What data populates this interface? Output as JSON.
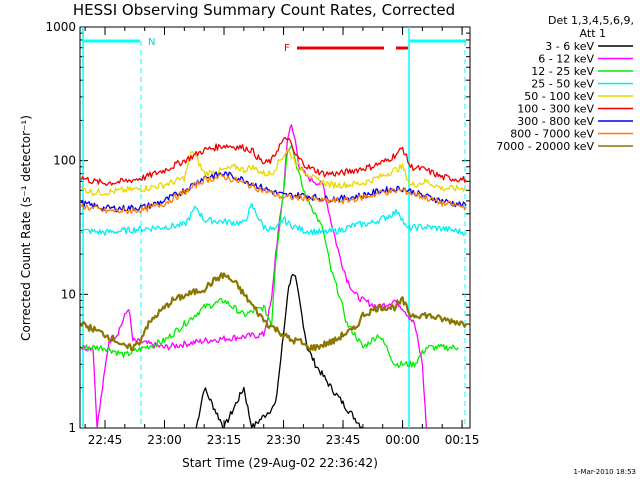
{
  "chart_data": {
    "type": "line",
    "title": "HESSI Observing Summary Count Rates, Corrected",
    "ylabel": "Corrected Count Rate (s⁻¹ detector⁻¹)",
    "xlabel": "Start Time (29-Aug-02 22:36:42)",
    "y_scale": "log",
    "ylim": [
      1,
      1000
    ],
    "xlim_minutes_after_2230": [
      8.7,
      107
    ],
    "y_ticks": [
      {
        "value": 1,
        "label": "1"
      },
      {
        "value": 10,
        "label": "10"
      },
      {
        "value": 100,
        "label": "100"
      },
      {
        "value": 1000,
        "label": "1000"
      }
    ],
    "x_ticks": [
      {
        "minute": 15,
        "label": "22:45"
      },
      {
        "minute": 30,
        "label": "23:00"
      },
      {
        "minute": 45,
        "label": "23:15"
      },
      {
        "minute": 60,
        "label": "23:30"
      },
      {
        "minute": 75,
        "label": "23:45"
      },
      {
        "minute": 90,
        "label": "00:00"
      },
      {
        "minute": 105,
        "label": "00:15"
      }
    ],
    "legend_header": [
      "Det 1,3,4,5,6,9,",
      "Att 1"
    ],
    "legend_placement": "right",
    "series": [
      {
        "name": "3 - 6 keV",
        "color": "#000000",
        "points": [
          [
            38,
            1
          ],
          [
            40,
            2
          ],
          [
            45,
            1
          ],
          [
            50,
            2
          ],
          [
            52,
            1
          ],
          [
            58,
            1.5
          ],
          [
            60,
            5
          ],
          [
            61,
            10
          ],
          [
            62,
            14
          ],
          [
            63,
            13
          ],
          [
            64,
            9
          ],
          [
            65,
            6
          ],
          [
            66,
            4
          ],
          [
            68,
            3
          ],
          [
            72,
            2
          ],
          [
            76,
            1.4
          ],
          [
            80,
            1
          ]
        ]
      },
      {
        "name": "6 - 12 keV",
        "color": "#ff00ff",
        "points": [
          [
            9,
            4
          ],
          [
            12,
            4
          ],
          [
            13,
            1
          ],
          [
            16,
            4.5
          ],
          [
            18,
            5
          ],
          [
            21,
            8
          ],
          [
            22,
            4.5
          ],
          [
            30,
            4
          ],
          [
            40,
            4.5
          ],
          [
            55,
            5
          ],
          [
            57,
            9
          ],
          [
            58,
            20
          ],
          [
            60,
            60
          ],
          [
            61,
            150
          ],
          [
            62,
            180
          ],
          [
            63,
            140
          ],
          [
            64,
            90
          ],
          [
            66,
            75
          ],
          [
            68,
            70
          ],
          [
            70,
            65
          ],
          [
            72,
            35
          ],
          [
            74,
            20
          ],
          [
            76,
            13
          ],
          [
            78,
            10
          ],
          [
            80,
            9
          ],
          [
            84,
            8
          ],
          [
            88,
            9
          ],
          [
            90,
            8
          ],
          [
            93,
            6
          ],
          [
            95,
            3
          ],
          [
            96,
            1
          ]
        ]
      },
      {
        "name": "12 - 25 keV",
        "color": "#00ee00",
        "points": [
          [
            9,
            4
          ],
          [
            15,
            4
          ],
          [
            20,
            3.5
          ],
          [
            25,
            4
          ],
          [
            30,
            4.5
          ],
          [
            35,
            6
          ],
          [
            40,
            8
          ],
          [
            45,
            9
          ],
          [
            50,
            7
          ],
          [
            55,
            8
          ],
          [
            57,
            6
          ],
          [
            58,
            18
          ],
          [
            60,
            60
          ],
          [
            61,
            120
          ],
          [
            62,
            135
          ],
          [
            63,
            100
          ],
          [
            65,
            60
          ],
          [
            68,
            40
          ],
          [
            70,
            30
          ],
          [
            72,
            15
          ],
          [
            74,
            10
          ],
          [
            76,
            6
          ],
          [
            78,
            5
          ],
          [
            80,
            4
          ],
          [
            84,
            5
          ],
          [
            86,
            4
          ],
          [
            88,
            3
          ],
          [
            90,
            3
          ],
          [
            93,
            3
          ],
          [
            96,
            4
          ],
          [
            100,
            4
          ],
          [
            104,
            4
          ]
        ]
      },
      {
        "name": "25 - 50 keV",
        "color": "#00eeee",
        "points": [
          [
            9,
            30
          ],
          [
            15,
            29
          ],
          [
            20,
            30
          ],
          [
            25,
            31
          ],
          [
            30,
            32
          ],
          [
            35,
            33
          ],
          [
            38,
            45
          ],
          [
            40,
            36
          ],
          [
            45,
            35
          ],
          [
            50,
            34
          ],
          [
            52,
            46
          ],
          [
            55,
            32
          ],
          [
            58,
            30
          ],
          [
            60,
            37
          ],
          [
            61,
            34
          ],
          [
            65,
            30
          ],
          [
            70,
            29
          ],
          [
            74,
            30
          ],
          [
            78,
            33
          ],
          [
            82,
            34
          ],
          [
            86,
            38
          ],
          [
            89,
            42
          ],
          [
            91,
            31
          ],
          [
            95,
            32
          ],
          [
            100,
            31
          ],
          [
            106,
            29
          ]
        ]
      },
      {
        "name": "50 - 100 keV",
        "color": "#e8d800",
        "points": [
          [
            9,
            62
          ],
          [
            12,
            58
          ],
          [
            15,
            58
          ],
          [
            20,
            60
          ],
          [
            25,
            62
          ],
          [
            30,
            66
          ],
          [
            35,
            74
          ],
          [
            37,
            120
          ],
          [
            40,
            80
          ],
          [
            45,
            85
          ],
          [
            48,
            90
          ],
          [
            50,
            85
          ],
          [
            52,
            90
          ],
          [
            55,
            80
          ],
          [
            57,
            80
          ],
          [
            59,
            100
          ],
          [
            61,
            120
          ],
          [
            64,
            90
          ],
          [
            68,
            72
          ],
          [
            72,
            66
          ],
          [
            76,
            66
          ],
          [
            80,
            68
          ],
          [
            84,
            75
          ],
          [
            88,
            85
          ],
          [
            90,
            90
          ],
          [
            92,
            65
          ],
          [
            96,
            70
          ],
          [
            100,
            62
          ],
          [
            106,
            62
          ]
        ]
      },
      {
        "name": "100 - 300 keV",
        "color": "#ee0000",
        "points": [
          [
            9,
            75
          ],
          [
            12,
            70
          ],
          [
            15,
            68
          ],
          [
            20,
            70
          ],
          [
            25,
            75
          ],
          [
            30,
            85
          ],
          [
            35,
            100
          ],
          [
            40,
            120
          ],
          [
            45,
            130
          ],
          [
            50,
            125
          ],
          [
            52,
            120
          ],
          [
            53,
            110
          ],
          [
            55,
            95
          ],
          [
            57,
            100
          ],
          [
            59,
            130
          ],
          [
            61,
            150
          ],
          [
            63,
            110
          ],
          [
            66,
            90
          ],
          [
            70,
            80
          ],
          [
            74,
            80
          ],
          [
            78,
            85
          ],
          [
            82,
            90
          ],
          [
            86,
            100
          ],
          [
            89,
            115
          ],
          [
            90,
            125
          ],
          [
            92,
            90
          ],
          [
            96,
            85
          ],
          [
            100,
            75
          ],
          [
            106,
            72
          ]
        ]
      },
      {
        "name": "300 - 800 keV",
        "color": "#0000ee",
        "points": [
          [
            9,
            48
          ],
          [
            15,
            44
          ],
          [
            20,
            44
          ],
          [
            25,
            45
          ],
          [
            30,
            50
          ],
          [
            35,
            60
          ],
          [
            40,
            75
          ],
          [
            45,
            80
          ],
          [
            50,
            72
          ],
          [
            55,
            62
          ],
          [
            60,
            55
          ],
          [
            65,
            55
          ],
          [
            70,
            52
          ],
          [
            75,
            52
          ],
          [
            80,
            55
          ],
          [
            85,
            60
          ],
          [
            90,
            62
          ],
          [
            95,
            55
          ],
          [
            100,
            50
          ],
          [
            106,
            46
          ]
        ]
      },
      {
        "name": "800 - 7000 keV",
        "color": "#ff7f00",
        "points": [
          [
            9,
            46
          ],
          [
            15,
            42
          ],
          [
            20,
            42
          ],
          [
            25,
            43
          ],
          [
            30,
            48
          ],
          [
            35,
            58
          ],
          [
            40,
            72
          ],
          [
            45,
            76
          ],
          [
            50,
            68
          ],
          [
            55,
            60
          ],
          [
            60,
            53
          ],
          [
            65,
            53
          ],
          [
            70,
            50
          ],
          [
            75,
            50
          ],
          [
            80,
            53
          ],
          [
            85,
            58
          ],
          [
            90,
            60
          ],
          [
            95,
            54
          ],
          [
            100,
            48
          ],
          [
            106,
            45
          ]
        ]
      },
      {
        "name": "7000 - 20000 keV",
        "color": "#8b7600",
        "points": [
          [
            9,
            6
          ],
          [
            12,
            5.5
          ],
          [
            15,
            5
          ],
          [
            18,
            4.5
          ],
          [
            20,
            4
          ],
          [
            22,
            4
          ],
          [
            24,
            4.5
          ],
          [
            25,
            5.5
          ],
          [
            28,
            7
          ],
          [
            32,
            9
          ],
          [
            36,
            10
          ],
          [
            40,
            11
          ],
          [
            43,
            13
          ],
          [
            45,
            14
          ],
          [
            48,
            12
          ],
          [
            50,
            10
          ],
          [
            54,
            7
          ],
          [
            56,
            6
          ],
          [
            58,
            5.5
          ],
          [
            60,
            5
          ],
          [
            62,
            4.5
          ],
          [
            64,
            4.5
          ],
          [
            66,
            4
          ],
          [
            68,
            4
          ],
          [
            70,
            4.2
          ],
          [
            73,
            4.5
          ],
          [
            75,
            5
          ],
          [
            78,
            5.5
          ],
          [
            80,
            7
          ],
          [
            84,
            8
          ],
          [
            88,
            8
          ],
          [
            90,
            9
          ],
          [
            92,
            7
          ],
          [
            96,
            7
          ],
          [
            100,
            6.5
          ],
          [
            104,
            6.2
          ],
          [
            106,
            6
          ]
        ]
      }
    ]
  },
  "annotations": {
    "attenuator_label": "N",
    "flare_label": "F",
    "timestamp": "1-Mar-2010 18:53"
  }
}
